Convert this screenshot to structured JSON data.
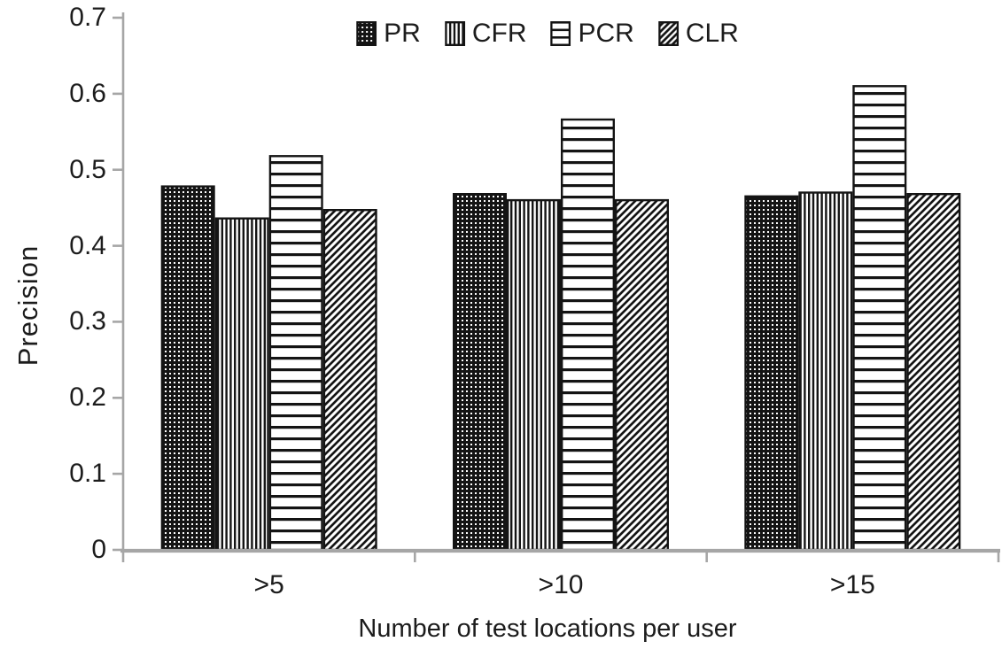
{
  "chart_data": {
    "type": "bar",
    "title": "",
    "xlabel": "Number of test locations per user",
    "ylabel": "Precision",
    "categories": [
      ">5",
      ">10",
      ">15"
    ],
    "series": [
      {
        "name": "PR",
        "pattern": "dots",
        "values": [
          0.478,
          0.468,
          0.465
        ]
      },
      {
        "name": "CFR",
        "pattern": "vertical-lines",
        "values": [
          0.436,
          0.46,
          0.47
        ]
      },
      {
        "name": "PCR",
        "pattern": "horizontal-lines",
        "values": [
          0.518,
          0.566,
          0.61
        ]
      },
      {
        "name": "CLR",
        "pattern": "diagonal-lines",
        "values": [
          0.447,
          0.46,
          0.468
        ]
      }
    ],
    "ylim": [
      0,
      0.7
    ],
    "ytick_step": 0.1,
    "ytick_labels": [
      "0",
      "0.1",
      "0.2",
      "0.3",
      "0.4",
      "0.5",
      "0.6",
      "0.7"
    ],
    "grid": false,
    "legend": {
      "position": "top-center",
      "entries": [
        "PR",
        "CFR",
        "PCR",
        "CLR"
      ]
    },
    "colors": {
      "ink": "#141414",
      "axis": "#a6a6a6",
      "text": "#1c1c1c",
      "background": "#ffffff"
    }
  }
}
